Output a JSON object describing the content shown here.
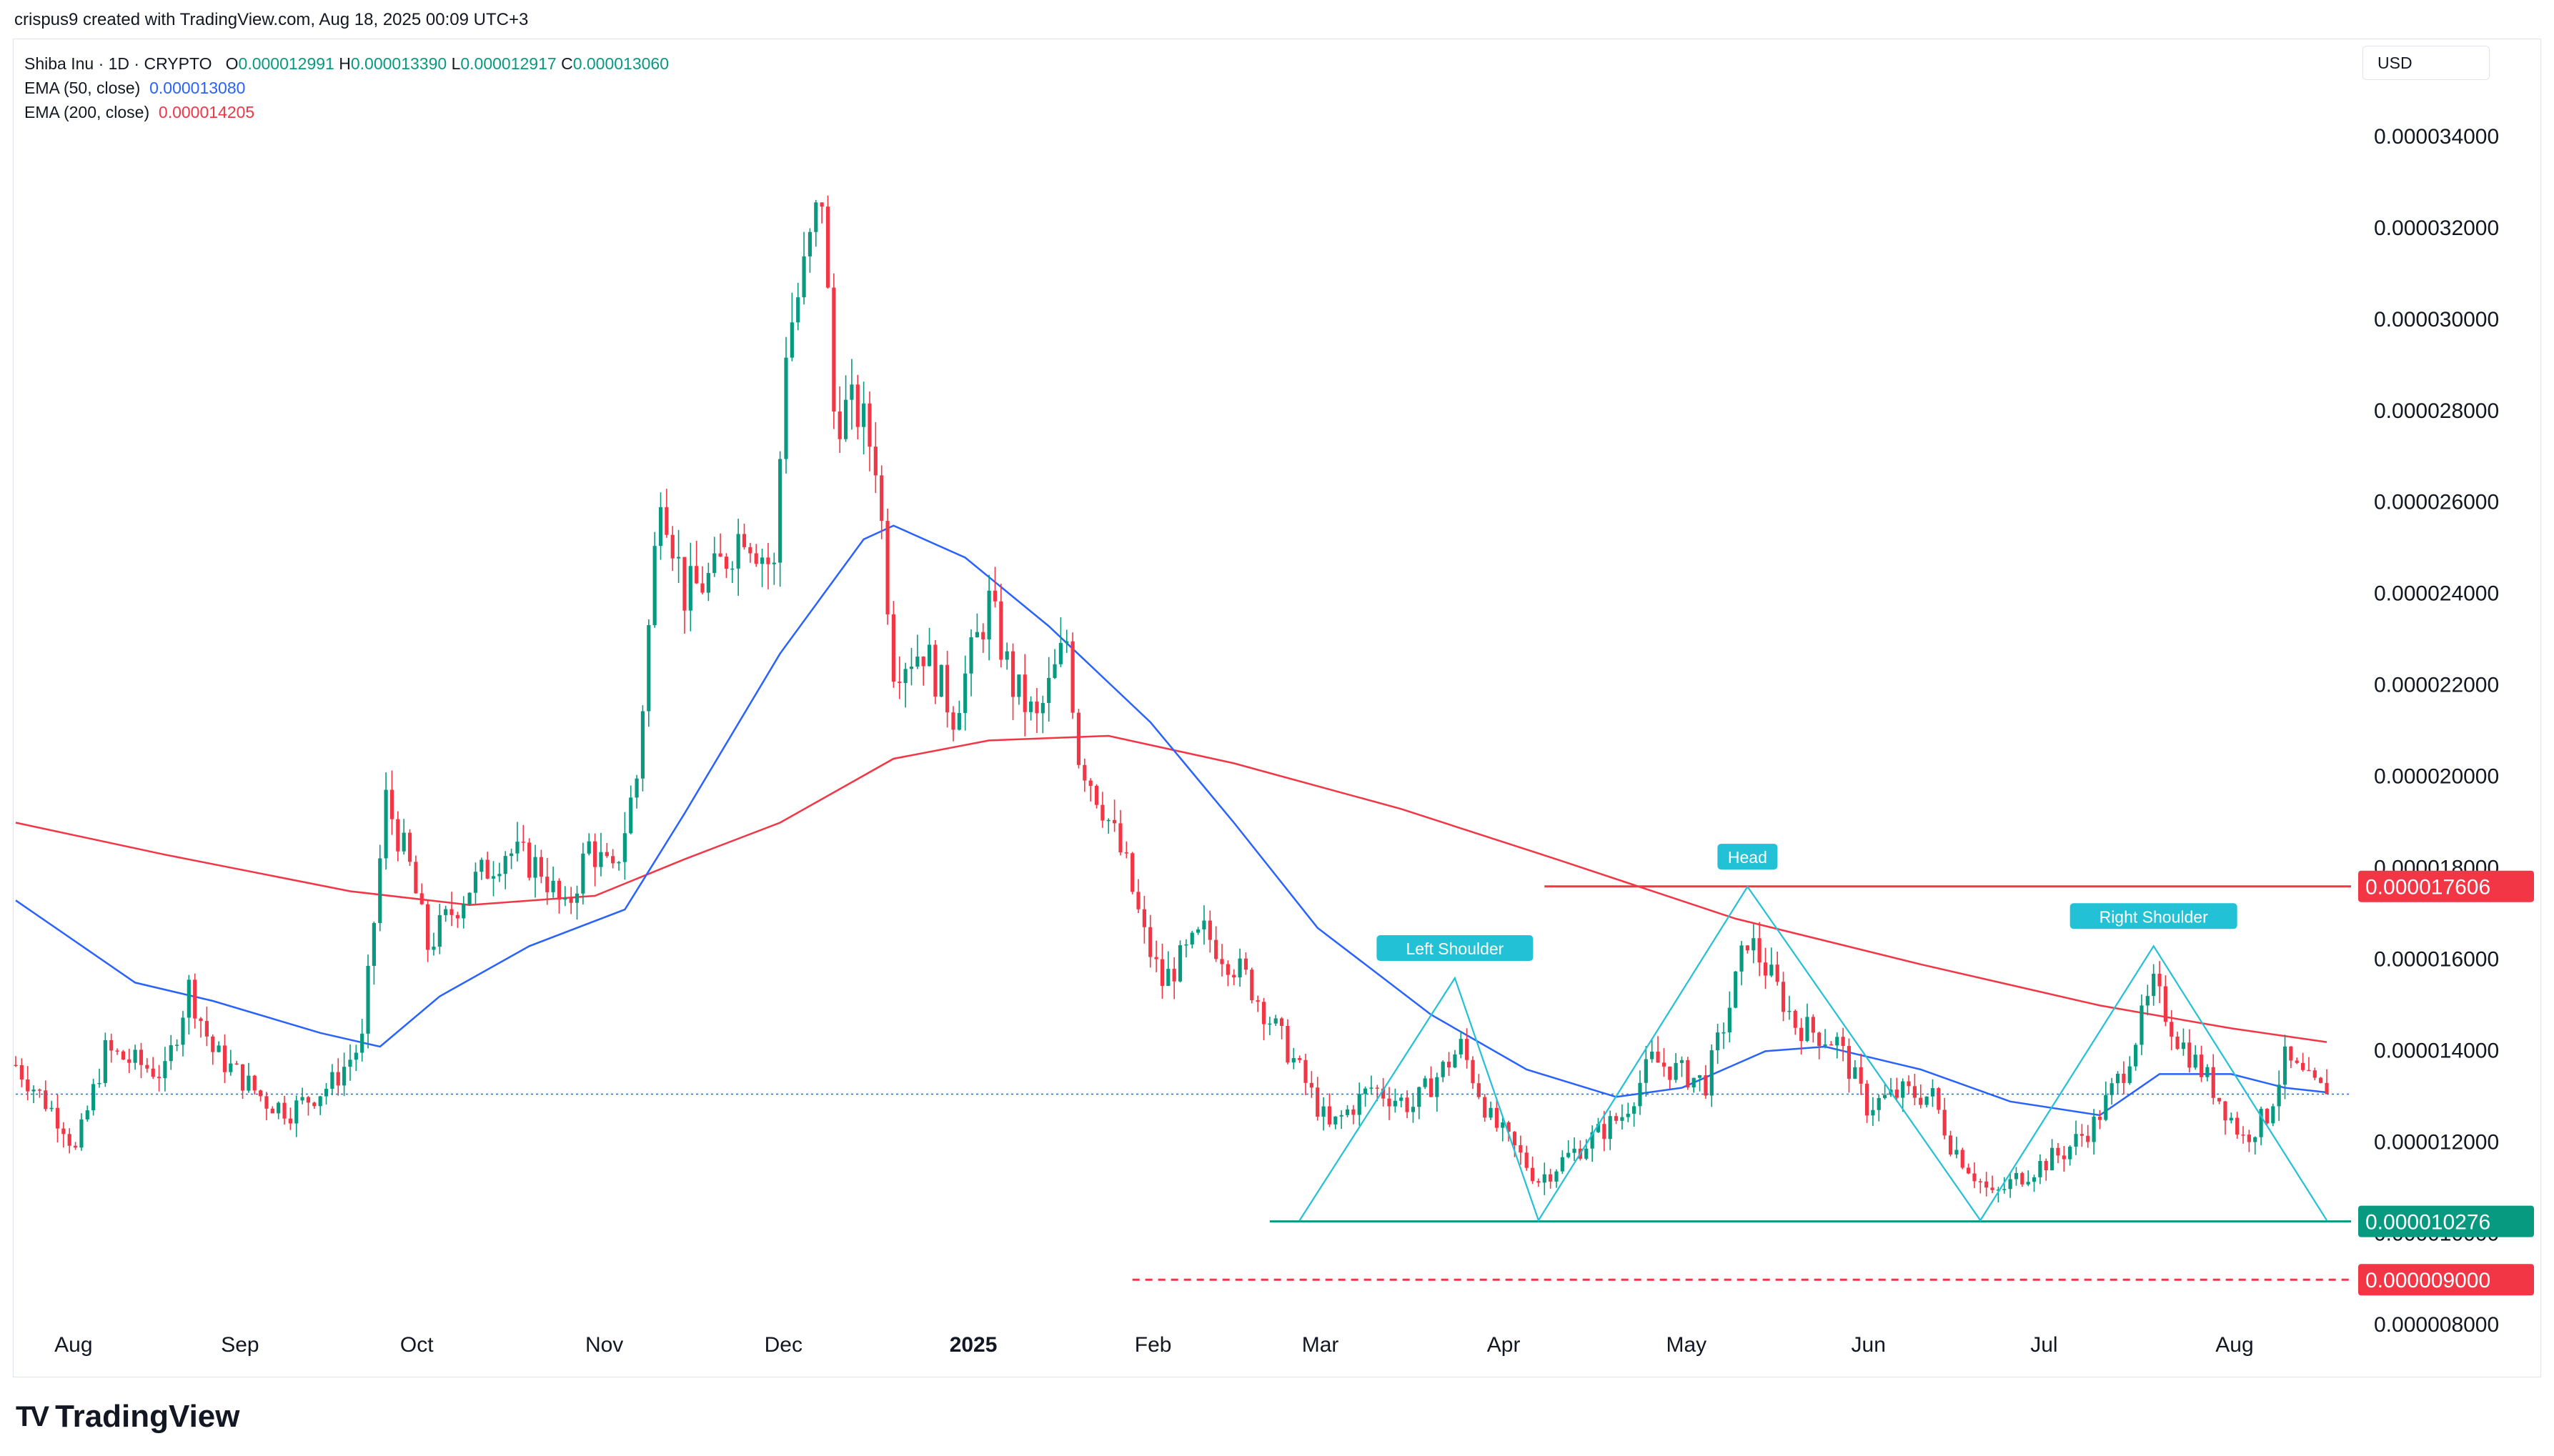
{
  "header": {
    "credit": "crispus9 created with TradingView.com, Aug 18, 2025 00:09 UTC+3"
  },
  "legend": {
    "symbol": "Shiba Inu · 1D · CRYPTO",
    "o_label": "O",
    "o_value": "0.000012991",
    "h_label": "H",
    "h_value": "0.000013390",
    "l_label": "L",
    "l_value": "0.000012917",
    "c_label": "C",
    "c_value": "0.000013060",
    "ema50_label": "EMA (50, close)",
    "ema50_value": "0.000013080",
    "ema200_label": "EMA (200, close)",
    "ema200_value": "0.000014205"
  },
  "currency": "USD",
  "branding": {
    "logo_text": "TradingView",
    "logo_glyph": "TV"
  },
  "colors": {
    "up": "#089981",
    "down": "#f23645",
    "ema50": "#2962ff",
    "ema200": "#f23645",
    "pattern": "#22c1d6",
    "support": "#089981",
    "resistance": "#f23645",
    "target": "#f23645"
  },
  "chart_data": {
    "type": "candlestick",
    "title": "Shiba Inu · 1D · CRYPTO",
    "y_axis": {
      "ticks": [
        "0.000008000",
        "0.000010000",
        "0.000012000",
        "0.000014000",
        "0.000016000",
        "0.000018000",
        "0.000020000",
        "0.000022000",
        "0.000024000",
        "0.000026000",
        "0.000028000",
        "0.000030000",
        "0.000032000",
        "0.000034000"
      ],
      "tick_values": [
        8.0,
        10.0,
        12.0,
        14.0,
        16.0,
        18.0,
        20.0,
        22.0,
        24.0,
        26.0,
        28.0,
        30.0,
        32.0,
        34.0
      ],
      "unit_scale": "1e-6",
      "range": [
        7.3,
        35.5
      ]
    },
    "x_axis": {
      "labels": [
        "Aug",
        "Sep",
        "Oct",
        "Nov",
        "Dec",
        "2025",
        "Feb",
        "Mar",
        "Apr",
        "May",
        "Jun",
        "Jul",
        "Aug"
      ],
      "bold": [
        false,
        false,
        false,
        false,
        false,
        true,
        false,
        false,
        false,
        false,
        false,
        false,
        false
      ],
      "start_date": "2024-07-26",
      "end_date": "2025-08-17"
    },
    "price_path": [
      [
        "2024-07-26",
        13.7
      ],
      [
        "2024-08-03",
        12.4
      ],
      [
        "2024-08-05",
        11.8
      ],
      [
        "2024-08-10",
        14.0
      ],
      [
        "2024-08-20",
        13.5
      ],
      [
        "2024-08-24",
        15.4
      ],
      [
        "2024-08-28",
        14.0
      ],
      [
        "2024-09-06",
        12.9
      ],
      [
        "2024-09-10",
        12.7
      ],
      [
        "2024-09-17",
        13.3
      ],
      [
        "2024-09-22",
        14.2
      ],
      [
        "2024-09-26",
        19.5
      ],
      [
        "2024-09-30",
        18.0
      ],
      [
        "2024-10-03",
        16.3
      ],
      [
        "2024-10-10",
        17.6
      ],
      [
        "2024-10-16",
        18.4
      ],
      [
        "2024-10-22",
        18.0
      ],
      [
        "2024-10-26",
        17.0
      ],
      [
        "2024-10-30",
        18.5
      ],
      [
        "2024-11-03",
        17.8
      ],
      [
        "2024-11-07",
        20.0
      ],
      [
        "2024-11-11",
        26.5
      ],
      [
        "2024-11-15",
        24.0
      ],
      [
        "2024-11-20",
        24.4
      ],
      [
        "2024-11-25",
        25.5
      ],
      [
        "2024-11-30",
        24.5
      ],
      [
        "2024-12-02",
        29.5
      ],
      [
        "2024-12-05",
        31.0
      ],
      [
        "2024-12-08",
        32.8
      ],
      [
        "2024-12-10",
        28.0
      ],
      [
        "2024-12-14",
        28.0
      ],
      [
        "2024-12-17",
        27.0
      ],
      [
        "2024-12-20",
        22.5
      ],
      [
        "2024-12-25",
        22.8
      ],
      [
        "2024-12-30",
        21.4
      ],
      [
        "2025-01-05",
        23.8
      ],
      [
        "2025-01-09",
        22.0
      ],
      [
        "2025-01-13",
        21.2
      ],
      [
        "2025-01-18",
        23.0
      ],
      [
        "2025-01-20",
        20.5
      ],
      [
        "2025-01-24",
        19.4
      ],
      [
        "2025-01-28",
        18.0
      ],
      [
        "2025-01-31",
        16.5
      ],
      [
        "2025-02-03",
        15.5
      ],
      [
        "2025-02-10",
        16.6
      ],
      [
        "2025-02-17",
        15.6
      ],
      [
        "2025-02-25",
        13.8
      ],
      [
        "2025-03-03",
        12.3
      ],
      [
        "2025-03-10",
        13.2
      ],
      [
        "2025-03-17",
        12.8
      ],
      [
        "2025-03-25",
        14.1
      ],
      [
        "2025-03-30",
        12.5
      ],
      [
        "2025-04-07",
        11.2
      ],
      [
        "2025-04-14",
        11.9
      ],
      [
        "2025-04-21",
        12.6
      ],
      [
        "2025-04-26",
        13.8
      ],
      [
        "2025-05-05",
        13.3
      ],
      [
        "2025-05-09",
        15.0
      ],
      [
        "2025-05-12",
        16.5
      ],
      [
        "2025-05-16",
        15.6
      ],
      [
        "2025-05-20",
        14.6
      ],
      [
        "2025-05-27",
        14.2
      ],
      [
        "2025-06-01",
        12.8
      ],
      [
        "2025-06-07",
        13.1
      ],
      [
        "2025-06-12",
        13.0
      ],
      [
        "2025-06-15",
        12.0
      ],
      [
        "2025-06-22",
        10.8
      ],
      [
        "2025-06-27",
        11.3
      ],
      [
        "2025-07-04",
        11.8
      ],
      [
        "2025-07-09",
        12.4
      ],
      [
        "2025-07-14",
        13.6
      ],
      [
        "2025-07-19",
        15.4
      ],
      [
        "2025-07-23",
        14.3
      ],
      [
        "2025-07-28",
        13.4
      ],
      [
        "2025-08-03",
        12.1
      ],
      [
        "2025-08-07",
        12.6
      ],
      [
        "2025-08-10",
        13.8
      ],
      [
        "2025-08-14",
        13.3
      ],
      [
        "2025-08-17",
        13.06
      ]
    ],
    "ema50_path": [
      [
        "2024-07-26",
        17.3
      ],
      [
        "2024-08-05",
        16.4
      ],
      [
        "2024-08-15",
        15.5
      ],
      [
        "2024-08-28",
        15.1
      ],
      [
        "2024-09-15",
        14.4
      ],
      [
        "2024-09-25",
        14.1
      ],
      [
        "2024-10-05",
        15.2
      ],
      [
        "2024-10-20",
        16.3
      ],
      [
        "2024-11-05",
        17.1
      ],
      [
        "2024-11-15",
        19.2
      ],
      [
        "2024-12-01",
        22.7
      ],
      [
        "2024-12-15",
        25.2
      ],
      [
        "2024-12-20",
        25.5
      ],
      [
        "2025-01-01",
        24.8
      ],
      [
        "2025-01-15",
        23.3
      ],
      [
        "2025-02-01",
        21.2
      ],
      [
        "2025-02-15",
        19.0
      ],
      [
        "2025-03-01",
        16.7
      ],
      [
        "2025-03-20",
        14.8
      ],
      [
        "2025-04-05",
        13.6
      ],
      [
        "2025-04-20",
        13.0
      ],
      [
        "2025-05-01",
        13.2
      ],
      [
        "2025-05-15",
        14.0
      ],
      [
        "2025-05-25",
        14.1
      ],
      [
        "2025-06-10",
        13.6
      ],
      [
        "2025-06-25",
        12.9
      ],
      [
        "2025-07-10",
        12.6
      ],
      [
        "2025-07-20",
        13.5
      ],
      [
        "2025-08-01",
        13.5
      ],
      [
        "2025-08-10",
        13.2
      ],
      [
        "2025-08-17",
        13.1
      ]
    ],
    "ema200_path": [
      [
        "2024-07-26",
        19.0
      ],
      [
        "2024-08-20",
        18.3
      ],
      [
        "2024-09-20",
        17.5
      ],
      [
        "2024-10-10",
        17.2
      ],
      [
        "2024-10-31",
        17.4
      ],
      [
        "2024-11-15",
        18.2
      ],
      [
        "2024-12-01",
        19.0
      ],
      [
        "2024-12-20",
        20.4
      ],
      [
        "2025-01-05",
        20.8
      ],
      [
        "2025-01-25",
        20.9
      ],
      [
        "2025-02-15",
        20.3
      ],
      [
        "2025-03-15",
        19.3
      ],
      [
        "2025-04-10",
        18.2
      ],
      [
        "2025-05-10",
        16.9
      ],
      [
        "2025-06-10",
        15.9
      ],
      [
        "2025-07-10",
        15.0
      ],
      [
        "2025-08-01",
        14.5
      ],
      [
        "2025-08-17",
        14.2
      ]
    ],
    "price_lines": [
      {
        "label": "0.000017606",
        "value": 17.606,
        "from_date": "2025-04-08",
        "style": "solid",
        "color_key": "resistance"
      },
      {
        "label": "0.000010276",
        "value": 10.276,
        "from_date": "2025-02-21",
        "style": "solid",
        "color_key": "support"
      },
      {
        "label": "0.000009000",
        "value": 9.0,
        "from_date": "2025-01-29",
        "style": "dashed",
        "color_key": "target"
      }
    ],
    "annotations": [
      {
        "text": "Left Shoulder",
        "date": "2025-03-24",
        "value": 15.6
      },
      {
        "text": "Head",
        "date": "2025-05-12",
        "value": 17.6
      },
      {
        "text": "Right Shoulder",
        "date": "2025-07-19",
        "value": 16.3
      }
    ],
    "pattern_points": [
      [
        "2025-02-26",
        10.3
      ],
      [
        "2025-03-24",
        15.6
      ],
      [
        "2025-04-07",
        10.3
      ],
      [
        "2025-05-12",
        17.6
      ],
      [
        "2025-06-20",
        10.3
      ],
      [
        "2025-07-19",
        16.3
      ],
      [
        "2025-08-17",
        10.3
      ]
    ],
    "current_price": 13.06,
    "grid": false,
    "legend_position": "top-left"
  }
}
